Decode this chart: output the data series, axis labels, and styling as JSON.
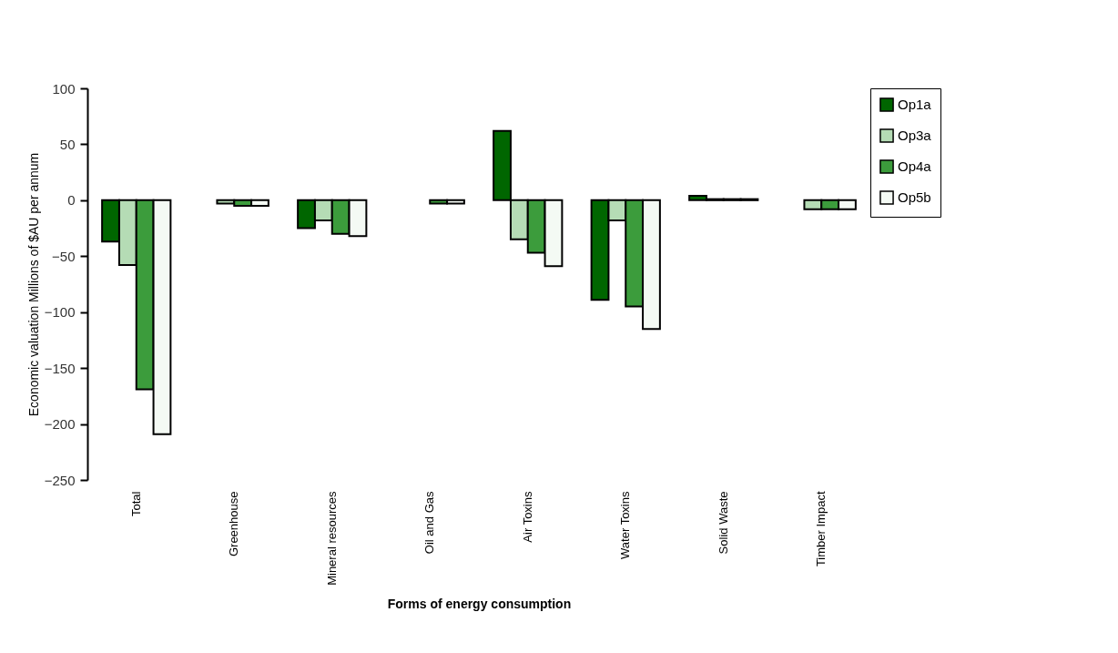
{
  "chart_data": {
    "type": "bar",
    "xlabel": "Forms of energy consumption",
    "ylabel": "Economic valuation Millions of $AU per annum",
    "categories": [
      "Total",
      "Greenhouse",
      "Mineral resources",
      "Oil and Gas",
      "Air Toxins",
      "Water Toxins",
      "Solid Waste",
      "Timber Impact"
    ],
    "series": [
      {
        "name": "Op1a",
        "color": "#006600",
        "values": [
          -37,
          null,
          -25,
          null,
          62,
          -89,
          4,
          null
        ]
      },
      {
        "name": "Op3a",
        "color": "#b5dcb5",
        "values": [
          -58,
          -3,
          -18,
          null,
          -35,
          -18,
          1,
          -8
        ]
      },
      {
        "name": "Op4a",
        "color": "#3c9c3c",
        "values": [
          -169,
          -5,
          -30,
          -3,
          -47,
          -95,
          1,
          -8
        ]
      },
      {
        "name": "Op5b",
        "color": "#f4faf4",
        "values": [
          -209,
          -5,
          -32,
          -3,
          -59,
          -115,
          1,
          -8
        ]
      }
    ],
    "ylim": [
      -250,
      100
    ],
    "yticks": [
      -250,
      -200,
      -150,
      -100,
      -50,
      0,
      50,
      100
    ],
    "grid": false,
    "legend": "right"
  }
}
